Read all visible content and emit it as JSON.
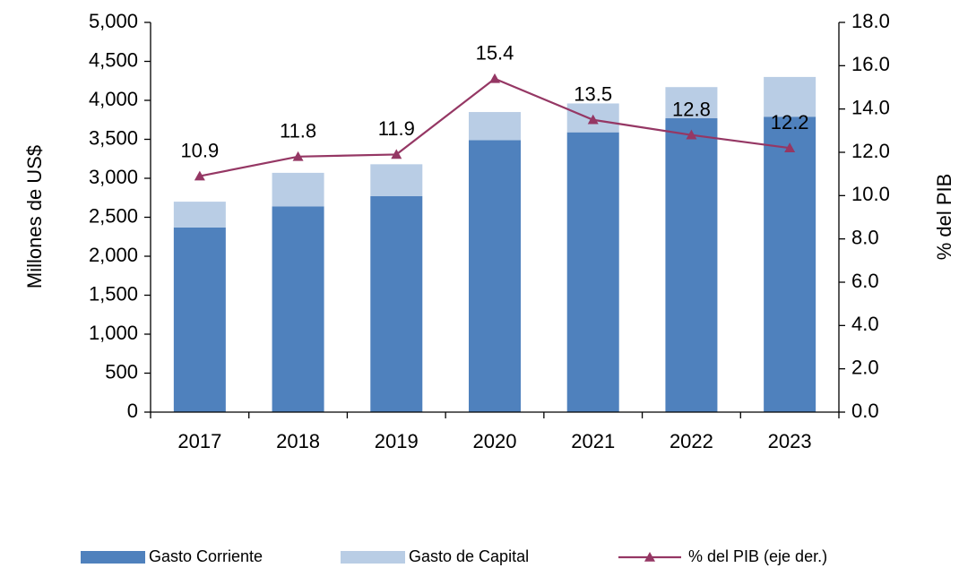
{
  "chart_data": {
    "type": "bar",
    "categories": [
      "2017",
      "2018",
      "2019",
      "2020",
      "2021",
      "2022",
      "2023"
    ],
    "series": [
      {
        "name": "Gasto Corriente",
        "color": "#4f81bd",
        "values": [
          2370,
          2640,
          2770,
          3490,
          3590,
          3770,
          3790
        ]
      },
      {
        "name": "Gasto de Capital",
        "color": "#b9cde5",
        "values": [
          330,
          430,
          410,
          360,
          370,
          400,
          510
        ]
      },
      {
        "name": "% del PIB (eje der.)",
        "color": "#953764",
        "axis": "y2",
        "type": "line",
        "values": [
          10.9,
          11.8,
          11.9,
          15.4,
          13.5,
          12.8,
          12.2
        ]
      }
    ],
    "stacked": true,
    "y_label": "Millones de US$",
    "y2_label": "% del PIB",
    "ylim": [
      0,
      5000
    ],
    "yticks": [
      0,
      500,
      {
        "value": 1000,
        "label": "1,000"
      },
      {
        "value": 1500,
        "label": "1,500"
      },
      {
        "value": 2000,
        "label": "2,000"
      },
      {
        "value": 2500,
        "label": "2,500"
      },
      {
        "value": 3000,
        "label": "3,000"
      },
      {
        "value": 3500,
        "label": "3,500"
      },
      {
        "value": 4000,
        "label": "4,000"
      },
      {
        "value": 4500,
        "label": "4,500"
      },
      {
        "value": 5000,
        "label": "5,000"
      }
    ],
    "y2lim": [
      0,
      18
    ],
    "y2ticks": [
      {
        "value": 0,
        "label": "0.0"
      },
      {
        "value": 2,
        "label": "2.0"
      },
      {
        "value": 4,
        "label": "4.0"
      },
      {
        "value": 6,
        "label": "6.0"
      },
      {
        "value": 8,
        "label": "8.0"
      },
      {
        "value": 10,
        "label": "10.0"
      },
      {
        "value": 12,
        "label": "12.0"
      },
      {
        "value": 14,
        "label": "14.0"
      },
      {
        "value": 16,
        "label": "16.0"
      },
      {
        "value": 18,
        "label": "18.0"
      }
    ],
    "legend": "bottom"
  }
}
